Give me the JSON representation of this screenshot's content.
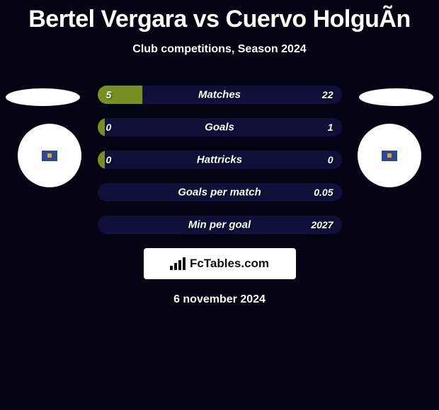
{
  "title": "Bertel Vergara vs Cuervo HolguÃ­n",
  "subtitle": "Club competitions, Season 2024",
  "date": "6 november 2024",
  "brand": "FcTables.com",
  "colors": {
    "green": "#788f24",
    "darkblue": "#10103a",
    "white": "#ffffff",
    "bg": "#040414"
  },
  "bars": [
    {
      "label": "Matches",
      "left_value": "5",
      "right_value": "22",
      "left_pct": 18.5,
      "left_color": "#788f24",
      "right_color": "#10103a"
    },
    {
      "label": "Goals",
      "left_value": "0",
      "right_value": "1",
      "left_pct": 3,
      "left_color": "#788f24",
      "right_color": "#10103a"
    },
    {
      "label": "Hattricks",
      "left_value": "0",
      "right_value": "0",
      "left_pct": 3,
      "left_color": "#788f24",
      "right_color": "#10103a"
    },
    {
      "label": "Goals per match",
      "left_value": "",
      "right_value": "0.05",
      "left_pct": 0,
      "left_color": "#788f24",
      "right_color": "#10103a"
    },
    {
      "label": "Min per goal",
      "left_value": "",
      "right_value": "2027",
      "left_pct": 0,
      "left_color": "#788f24",
      "right_color": "#10103a"
    }
  ]
}
